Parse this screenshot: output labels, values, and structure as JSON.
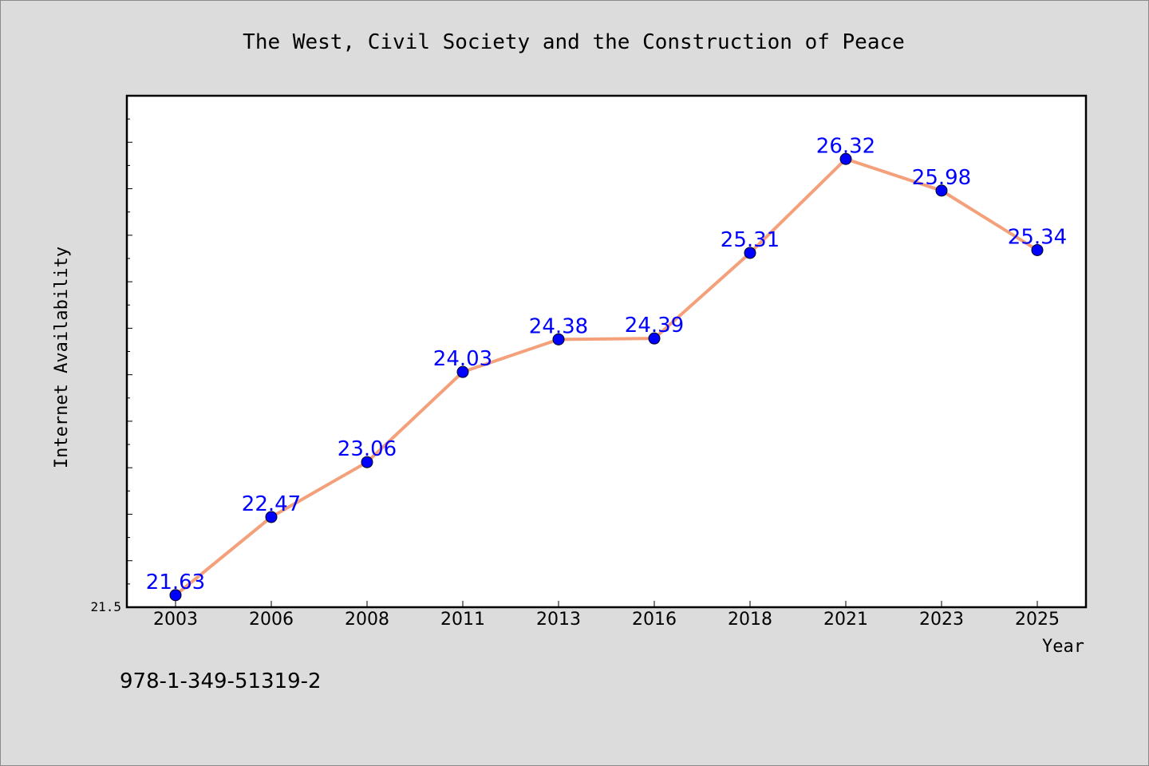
{
  "chart_data": {
    "type": "line",
    "title": "The West, Civil Society and the Construction of Peace",
    "xlabel": "Year",
    "ylabel": "Internet Availability",
    "categories": [
      "2003",
      "2006",
      "2008",
      "2011",
      "2013",
      "2016",
      "2018",
      "2021",
      "2023",
      "2025"
    ],
    "series": [
      {
        "values": [
          21.63,
          22.47,
          23.06,
          24.03,
          24.38,
          24.39,
          25.31,
          26.32,
          25.98,
          25.34
        ]
      }
    ],
    "data_labels": [
      "21.63",
      "22.47",
      "23.06",
      "24.03",
      "24.38",
      "24.39",
      "25.31",
      "26.32",
      "25.98",
      "25.34"
    ],
    "ytick_labels": [
      "21.5"
    ],
    "ylim": [
      21.5,
      27.0
    ],
    "grid": false,
    "line_color": "#f4a07a",
    "marker_color": "#0000ff",
    "label_color": "#0000ff"
  },
  "footer": {
    "isbn": "978-1-349-51319-2"
  }
}
